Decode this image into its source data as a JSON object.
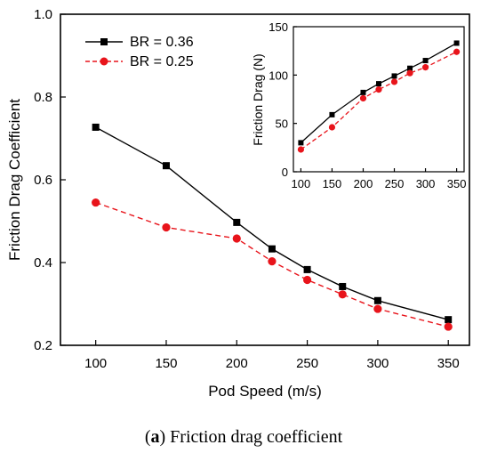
{
  "chart_data": [
    {
      "type": "line",
      "xlabel": "Pod Speed (m/s)",
      "ylabel": "Friction Drag Coefficient",
      "xlim": [
        75,
        365
      ],
      "ylim": [
        0.2,
        1.0
      ],
      "xticks": [
        "100",
        "150",
        "200",
        "250",
        "300",
        "350"
      ],
      "yticks": [
        "0.2",
        "0.4",
        "0.6",
        "0.8",
        "1.0"
      ],
      "x": [
        100,
        150,
        200,
        225,
        250,
        275,
        300,
        350
      ],
      "legend_position": "top-left",
      "series": [
        {
          "name": "BR = 0.36",
          "color": "#000000",
          "marker": "square",
          "dash": "solid",
          "values": [
            0.727,
            0.634,
            0.497,
            0.433,
            0.383,
            0.342,
            0.308,
            0.262
          ]
        },
        {
          "name": "BR = 0.25",
          "color": "#e8141b",
          "marker": "circle",
          "dash": "dashed",
          "values": [
            0.545,
            0.485,
            0.458,
            0.403,
            0.358,
            0.323,
            0.288,
            0.245
          ]
        }
      ]
    },
    {
      "type": "line",
      "inset": true,
      "xlabel": "",
      "ylabel": "Friction Drag (N)",
      "xlim": [
        88,
        362
      ],
      "ylim": [
        0,
        150
      ],
      "xticks": [
        "100",
        "150",
        "200",
        "250",
        "300",
        "350"
      ],
      "yticks": [
        "0",
        "50",
        "100",
        "150"
      ],
      "x": [
        100,
        150,
        200,
        225,
        250,
        275,
        300,
        350
      ],
      "series": [
        {
          "name": "BR = 0.36",
          "color": "#000000",
          "marker": "square",
          "dash": "solid",
          "values": [
            30,
            59,
            82,
            91,
            99,
            107,
            115,
            133
          ]
        },
        {
          "name": "BR = 0.25",
          "color": "#e8141b",
          "marker": "circle",
          "dash": "dashed",
          "values": [
            23,
            46,
            76,
            85,
            93,
            102,
            108,
            124
          ]
        }
      ]
    }
  ],
  "caption": {
    "label": "a",
    "text": " Friction drag coefficient"
  }
}
